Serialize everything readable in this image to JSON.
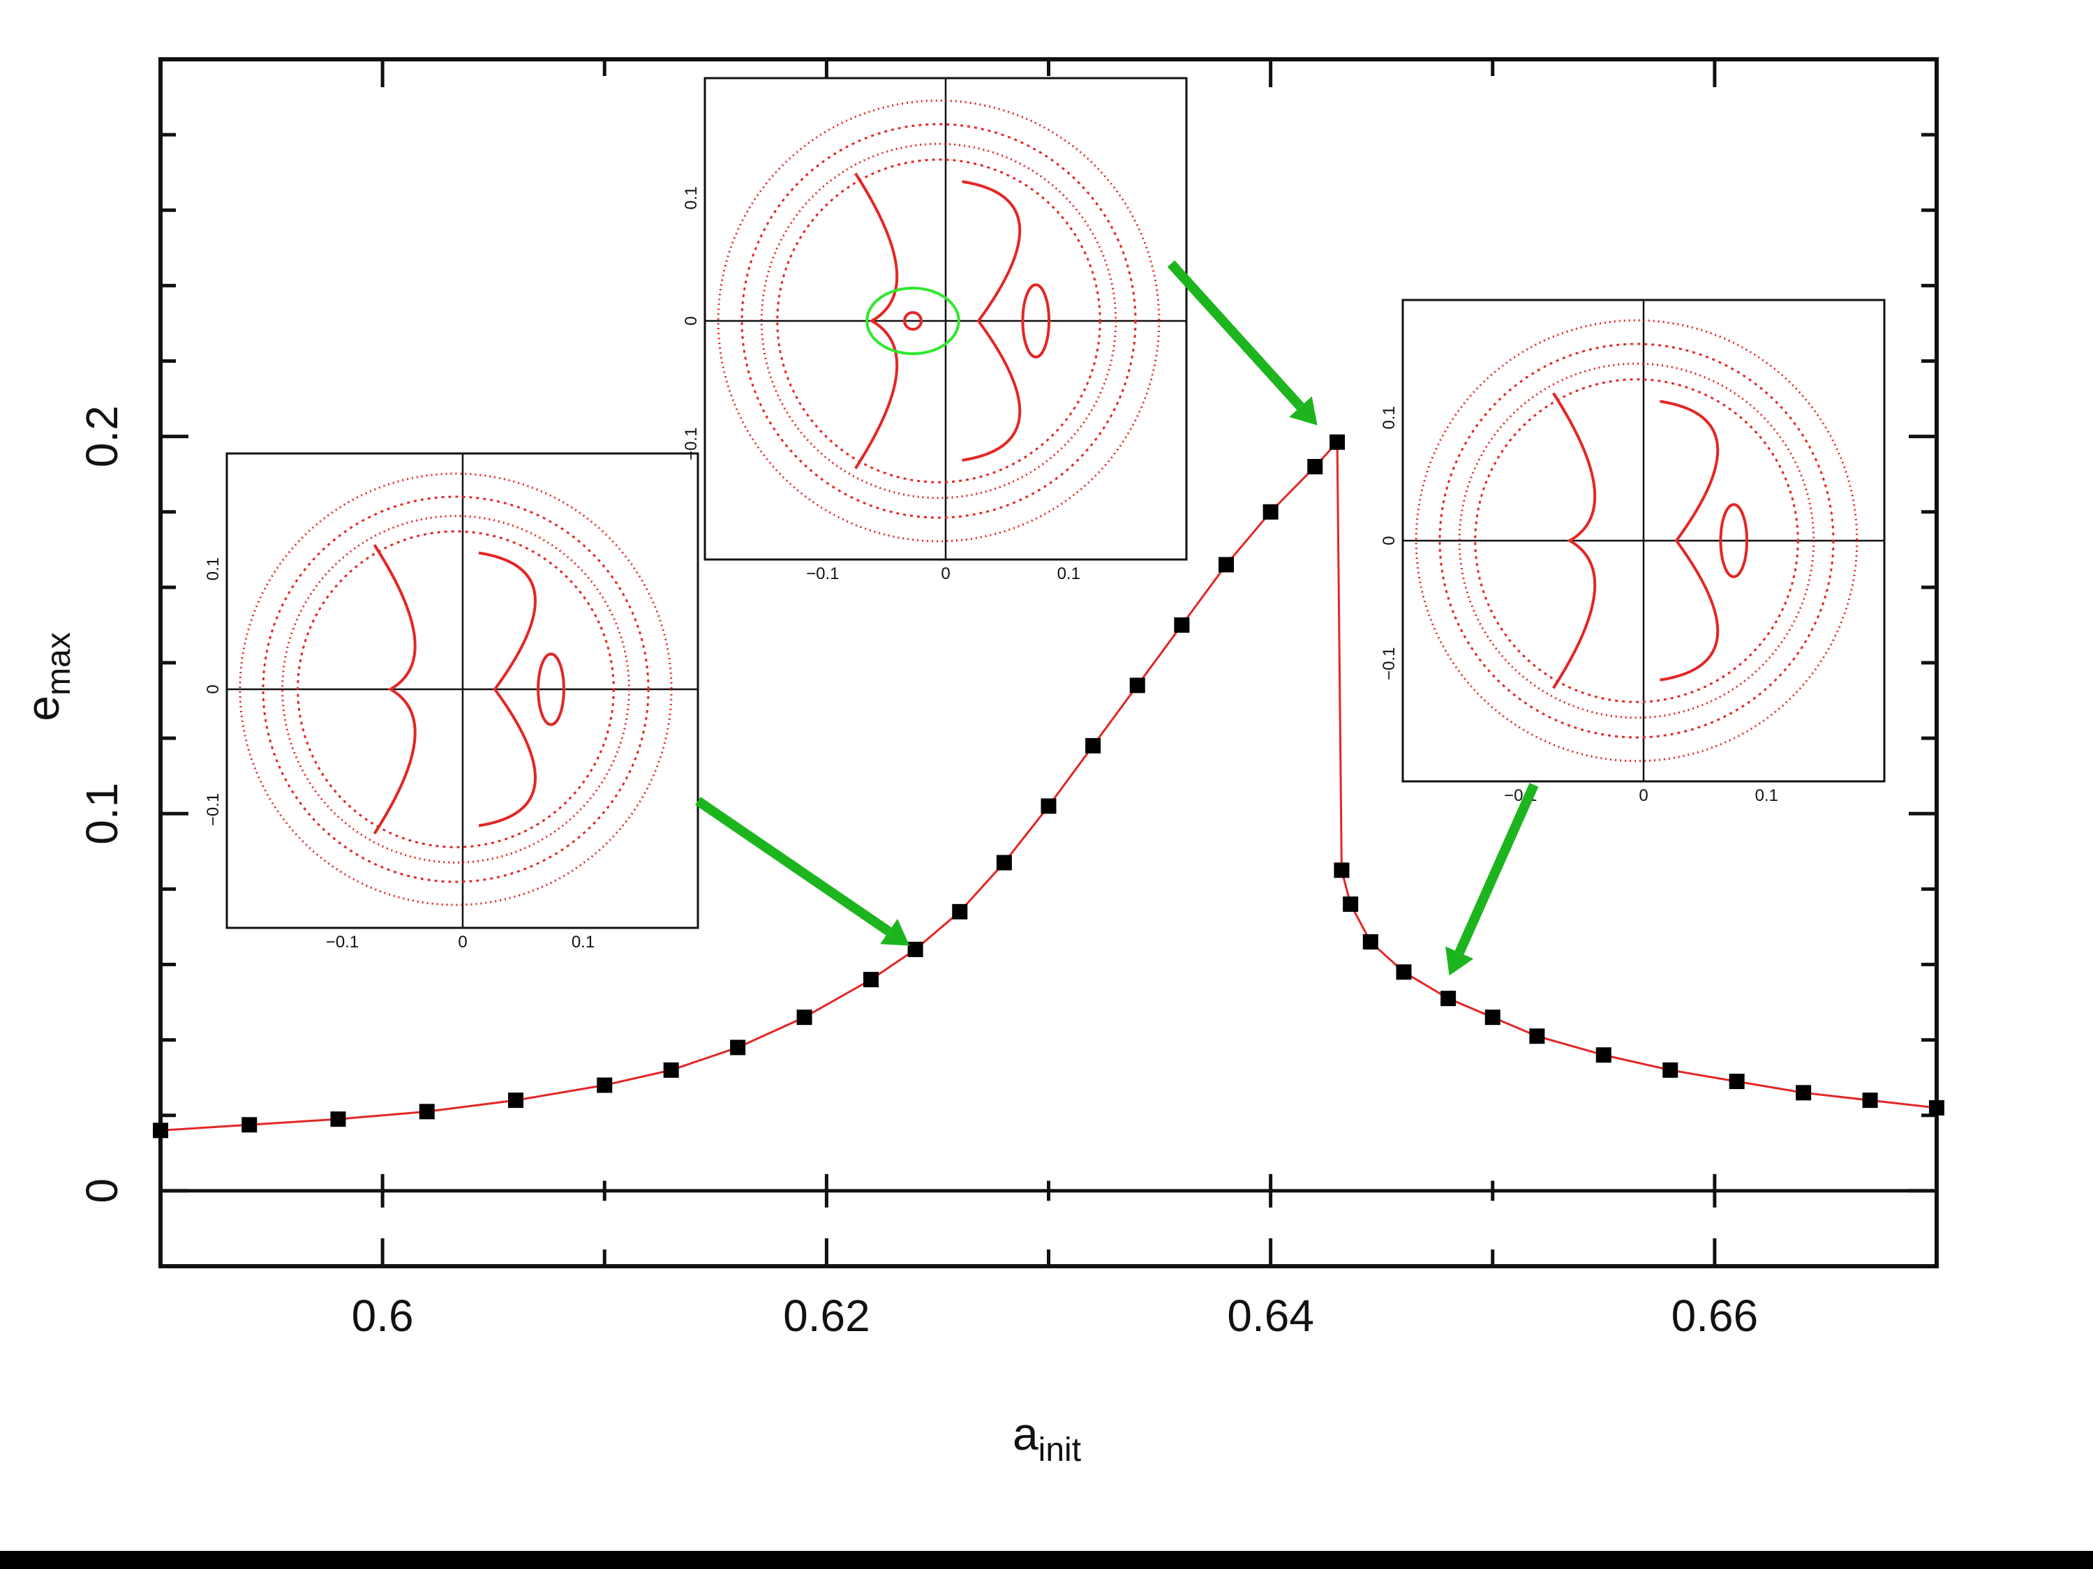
{
  "chart_data": {
    "type": "scatter",
    "xlabel": "a",
    "xlabel_subscript": "init",
    "ylabel": "e",
    "ylabel_subscript": "max",
    "xlim": [
      0.59,
      0.67
    ],
    "ylim": [
      -0.02,
      0.3
    ],
    "x_ticks": [
      "0.6",
      "0.62",
      "0.64",
      "0.66"
    ],
    "y_ticks": [
      "0",
      "0.1",
      "0.2"
    ],
    "grid": false,
    "marker_color": "#000000",
    "line_color": "#e32626",
    "arrow_color": "#1db51d",
    "series": [
      {
        "x": [
          0.59,
          0.594,
          0.598,
          0.602,
          0.606,
          0.61,
          0.613,
          0.616,
          0.619,
          0.622,
          0.624,
          0.626,
          0.628,
          0.63,
          0.632,
          0.634,
          0.636,
          0.638,
          0.64,
          0.642,
          0.643,
          0.6432,
          0.6436,
          0.6445,
          0.646,
          0.648,
          0.65,
          0.652,
          0.655,
          0.658,
          0.661,
          0.664,
          0.667,
          0.67
        ],
        "y": [
          0.016,
          0.0175,
          0.019,
          0.021,
          0.024,
          0.028,
          0.032,
          0.038,
          0.046,
          0.056,
          0.064,
          0.074,
          0.087,
          0.102,
          0.118,
          0.134,
          0.15,
          0.166,
          0.18,
          0.192,
          0.1985,
          0.085,
          0.076,
          0.066,
          0.058,
          0.051,
          0.046,
          0.041,
          0.036,
          0.032,
          0.029,
          0.026,
          0.024,
          0.022
        ]
      }
    ],
    "insets": [
      {
        "x_ticks": [
          "−0.1",
          "0",
          "0.1"
        ],
        "y_ticks": [
          "0.1",
          "0",
          "−0.1"
        ],
        "curve_colors": [
          "#e32626"
        ],
        "points_to": {
          "x": 0.624,
          "y": 0.064
        }
      },
      {
        "x_ticks": [
          "−0.1",
          "0",
          "0.1"
        ],
        "y_ticks": [
          "0.1",
          "0",
          "−0.1"
        ],
        "curve_colors": [
          "#e32626",
          "#2ee82e"
        ],
        "points_to": {
          "x": 0.6425,
          "y": 0.196
        }
      },
      {
        "x_ticks": [
          "−0.1",
          "0",
          "0.1"
        ],
        "y_ticks": [
          "0.1",
          "0",
          "−0.1"
        ],
        "curve_colors": [
          "#e32626"
        ],
        "points_to": {
          "x": 0.648,
          "y": 0.057
        }
      }
    ]
  }
}
